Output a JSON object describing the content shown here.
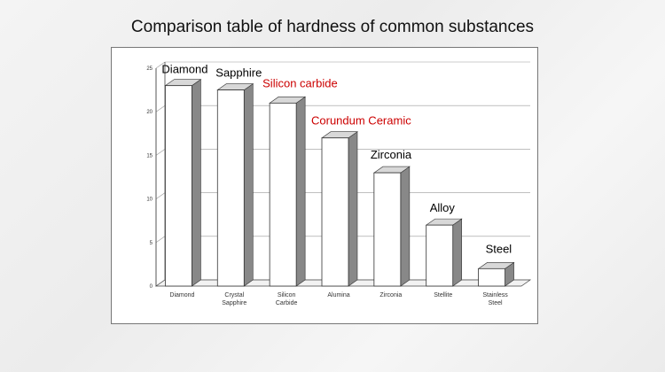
{
  "page": {
    "title": "Comparison table of hardness of common substances"
  },
  "chart_data": {
    "type": "bar",
    "categories": [
      [
        "Diamond"
      ],
      [
        "Crystal",
        "Sapphire"
      ],
      [
        "Silicon",
        "Carbide"
      ],
      [
        "Alumina"
      ],
      [
        "Zirconia"
      ],
      [
        "Stellite"
      ],
      [
        "Stainless",
        "Steel"
      ]
    ],
    "values": [
      23,
      22.5,
      21,
      17,
      13,
      7,
      2
    ],
    "annotations": [
      {
        "text": "Diamond",
        "color": "#000000"
      },
      {
        "text": "Sapphire",
        "color": "#000000"
      },
      {
        "text": "Silicon carbide",
        "color": "#cc0000"
      },
      {
        "text": "Corundum Ceramic",
        "color": "#cc0000"
      },
      {
        "text": "Zirconia",
        "color": "#000000"
      },
      {
        "text": "Alloy",
        "color": "#000000"
      },
      {
        "text": "Steel",
        "color": "#000000"
      }
    ],
    "yticks": [
      "0",
      "5",
      "10",
      "15",
      "20",
      "25"
    ],
    "ylim": [
      0,
      25
    ],
    "grid": true,
    "colors": {
      "bar_front": "#ffffff",
      "bar_side": "#888888",
      "bar_top": "#d8d8d8",
      "grid": "#999999",
      "axis": "#444444"
    }
  }
}
